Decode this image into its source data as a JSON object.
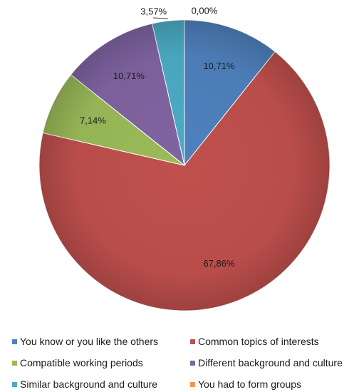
{
  "chart_data": {
    "type": "pie",
    "start_angle_deg": 0,
    "direction": "clockwise",
    "legend_position": "bottom",
    "slices": [
      {
        "label": "You know  or you like the others",
        "value": 10.71,
        "value_label": "10,71%",
        "color": "#4F81BD"
      },
      {
        "label": "Common topics of interests",
        "value": 67.86,
        "value_label": "67,86%",
        "color": "#C0504D"
      },
      {
        "label": "Compatible working periods",
        "value": 7.14,
        "value_label": "7,14%",
        "color": "#9BBB59"
      },
      {
        "label": "Different background and culture",
        "value": 10.71,
        "value_label": "10,71%",
        "color": "#8064A2"
      },
      {
        "label": "Similar background and culture",
        "value": 3.57,
        "value_label": "3,57%",
        "color": "#4BACC6"
      },
      {
        "label": "You had to form groups",
        "value": 0.0,
        "value_label": "0,00%",
        "color": "#F79646"
      }
    ]
  }
}
